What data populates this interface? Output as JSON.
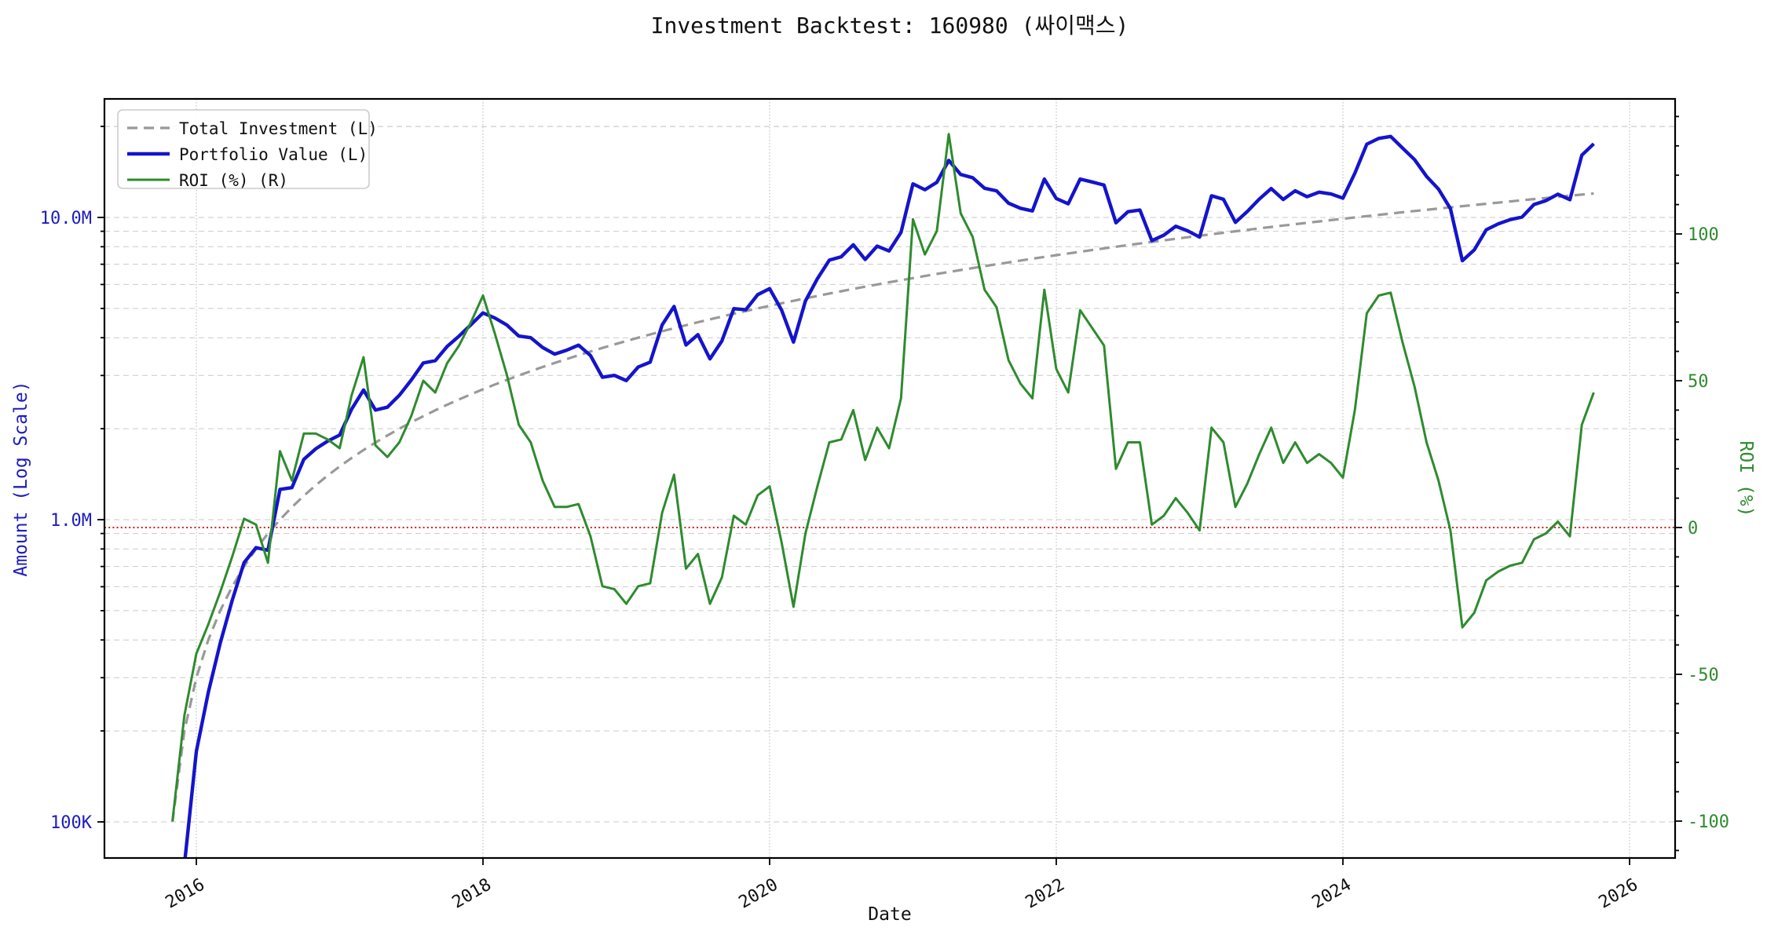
{
  "title": "Investment Backtest: 160980 (싸이맥스)",
  "axes": {
    "x": {
      "label": "Date",
      "ticks": [
        "2016",
        "2018",
        "2020",
        "2022",
        "2024",
        "2026"
      ],
      "tick_years": [
        2016,
        2018,
        2020,
        2022,
        2024,
        2026
      ]
    },
    "y_left": {
      "label": "Amount (Log Scale)",
      "scale": "log",
      "ticks": [
        "10.0M",
        "1.0M",
        "100K"
      ],
      "tick_values_mkrw": [
        10,
        1,
        0.1
      ],
      "color": "#1d1dbe"
    },
    "y_right": {
      "label": "ROI (%)",
      "scale": "linear",
      "ticks": [
        "100",
        "50",
        "0",
        "-50",
        "-100"
      ],
      "tick_values_pct": [
        100,
        50,
        0,
        -50,
        -100
      ],
      "color": "#2e8b2e"
    }
  },
  "legend": {
    "items": [
      {
        "label": "Total Investment (L)",
        "color": "#999999",
        "style": "dashed"
      },
      {
        "label": "Portfolio Value (L)",
        "color": "#1414cc",
        "style": "solid"
      },
      {
        "label": "ROI (%) (R)",
        "color": "#2e8b2e",
        "style": "solid"
      }
    ]
  },
  "colors": {
    "investment": "#999999",
    "portfolio": "#1414cc",
    "roi": "#2e8b2e",
    "zero_line": "#d62020",
    "grid": "#c9c9c9",
    "vgrid": "#b5b5b5",
    "spine": "#000000",
    "title": "#111111"
  },
  "chart_data": {
    "type": "line",
    "title": "Investment Backtest: 160980 (싸이맥스)",
    "xlabel": "Date",
    "ylabel_left": "Amount (Log Scale)",
    "ylabel_right": "ROI (%)",
    "x_start_month": "2015-11",
    "x_end_month": "2025-10",
    "frequency": "monthly",
    "n_points": 120,
    "y_left_log_range_mkrw": [
      0.078,
      29.0
    ],
    "y_right_range_pct": [
      -112,
      146
    ],
    "reference_line": {
      "axis": "right",
      "value_pct": 0
    },
    "series": [
      {
        "name": "Total Investment (L)",
        "axis": "left",
        "unit": "M KRW",
        "rule": "cumulative contribution of 0.1M KRW per month",
        "values_mkrw": [
          0.1,
          0.2,
          0.3,
          0.4,
          0.5,
          0.6,
          0.7,
          0.8,
          0.9,
          1.0,
          1.1,
          1.2,
          1.3,
          1.4,
          1.5,
          1.6,
          1.7,
          1.8,
          1.9,
          2.0,
          2.1,
          2.2,
          2.3,
          2.4,
          2.5,
          2.6,
          2.7,
          2.8,
          2.9,
          3.0,
          3.1,
          3.2,
          3.3,
          3.4,
          3.5,
          3.6,
          3.7,
          3.8,
          3.9,
          4.0,
          4.1,
          4.2,
          4.3,
          4.4,
          4.5,
          4.6,
          4.7,
          4.8,
          4.9,
          5.0,
          5.1,
          5.2,
          5.3,
          5.4,
          5.5,
          5.6,
          5.7,
          5.8,
          5.9,
          6.0,
          6.1,
          6.2,
          6.3,
          6.4,
          6.5,
          6.6,
          6.7,
          6.8,
          6.9,
          7.0,
          7.1,
          7.2,
          7.3,
          7.4,
          7.5,
          7.6,
          7.7,
          7.8,
          7.9,
          8.0,
          8.1,
          8.2,
          8.3,
          8.4,
          8.5,
          8.6,
          8.7,
          8.8,
          8.9,
          9.0,
          9.1,
          9.2,
          9.3,
          9.4,
          9.5,
          9.6,
          9.7,
          9.8,
          9.9,
          10.0,
          10.1,
          10.2,
          10.3,
          10.4,
          10.5,
          10.6,
          10.7,
          10.8,
          10.9,
          11.0,
          11.1,
          11.2,
          11.3,
          11.4,
          11.5,
          11.6,
          11.7,
          11.8,
          11.9,
          12.0
        ]
      },
      {
        "name": "Portfolio Value (L)",
        "axis": "left",
        "unit": "M KRW",
        "values_mkrw": [
          0,
          0.072,
          0.171,
          0.268,
          0.39,
          0.54,
          0.721,
          0.808,
          0.792,
          1.26,
          1.276,
          1.584,
          1.716,
          1.82,
          1.905,
          2.32,
          2.686,
          2.304,
          2.356,
          2.58,
          2.898,
          3.3,
          3.358,
          3.744,
          4.05,
          4.42,
          4.833,
          4.648,
          4.408,
          4.05,
          3.999,
          3.712,
          3.531,
          3.638,
          3.78,
          3.492,
          2.96,
          3.002,
          2.886,
          3.2,
          3.321,
          4.41,
          5.074,
          3.784,
          4.095,
          3.404,
          3.901,
          4.992,
          4.949,
          5.55,
          5.814,
          4.94,
          3.869,
          5.292,
          6.27,
          7.224,
          7.41,
          8.12,
          7.257,
          8.04,
          7.747,
          8.928,
          12.915,
          12.352,
          13.065,
          15.444,
          13.869,
          13.532,
          12.489,
          12.25,
          11.147,
          10.728,
          10.512,
          13.394,
          11.55,
          11.096,
          13.398,
          13.104,
          12.798,
          9.6,
          10.449,
          10.578,
          8.383,
          8.736,
          9.35,
          9.03,
          8.613,
          11.792,
          11.481,
          9.63,
          10.465,
          11.5,
          12.462,
          11.468,
          12.255,
          11.712,
          12.125,
          11.956,
          11.583,
          14.0,
          17.473,
          18.258,
          18.54,
          16.952,
          15.54,
          13.674,
          12.412,
          10.692,
          7.194,
          7.81,
          9.102,
          9.52,
          9.831,
          10.032,
          11.04,
          11.368,
          11.934,
          11.446,
          16.065,
          17.52
        ]
      },
      {
        "name": "ROI (%) (R)",
        "axis": "right",
        "unit": "%",
        "values_pct": [
          -100,
          -64,
          -43,
          -33,
          -22,
          -10,
          3,
          1,
          -12,
          26,
          16,
          32,
          32,
          30,
          27,
          45,
          58,
          28,
          24,
          29,
          38,
          50,
          46,
          56,
          62,
          70,
          79,
          66,
          52,
          35,
          29,
          16,
          7,
          7,
          8,
          -3,
          -20,
          -21,
          -26,
          -20,
          -19,
          5,
          18,
          -14,
          -9,
          -26,
          -17,
          4,
          1,
          11,
          14,
          -5,
          -27,
          -2,
          14,
          29,
          30,
          40,
          23,
          34,
          27,
          44,
          105,
          93,
          101,
          134,
          107,
          99,
          81,
          75,
          57,
          49,
          44,
          81,
          54,
          46,
          74,
          68,
          62,
          20,
          29,
          29,
          1,
          4,
          10,
          5,
          -1,
          34,
          29,
          7,
          15,
          25,
          34,
          22,
          29,
          22,
          25,
          22,
          17,
          40,
          73,
          79,
          80,
          63,
          48,
          29,
          16,
          -1,
          -34,
          -29,
          -18,
          -15,
          -13,
          -12,
          -4,
          -2,
          2,
          -3,
          35,
          46
        ]
      }
    ]
  }
}
